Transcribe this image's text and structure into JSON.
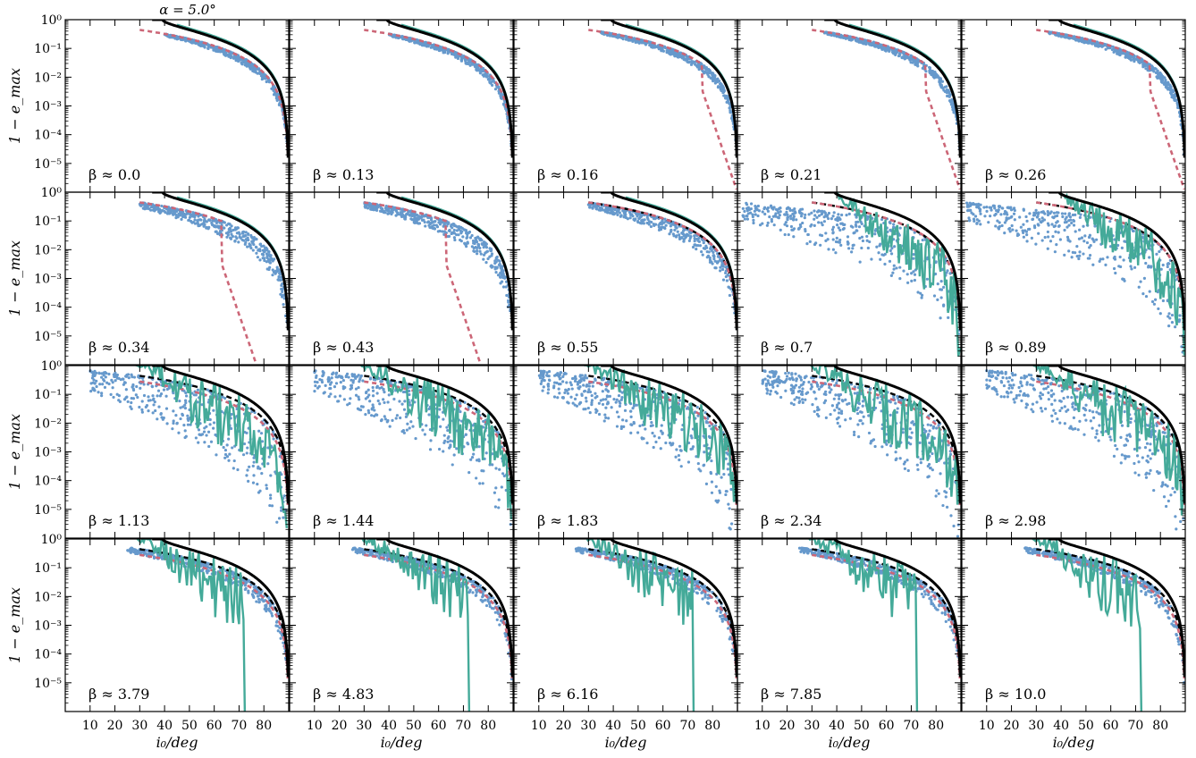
{
  "figure": {
    "title": "α = 5.0°",
    "xlabel": "i₀/deg",
    "ylabel": "1 − e_max"
  },
  "chart_data": {
    "type": "line",
    "grid": false,
    "layout": {
      "rows": 4,
      "cols": 5
    },
    "xlim": [
      0,
      90
    ],
    "ylim": [
      1e-06,
      1
    ],
    "yscale": "log",
    "xticks": [
      10,
      20,
      30,
      40,
      50,
      60,
      70,
      80
    ],
    "yticks": [
      1,
      0.1,
      0.01,
      0.001,
      0.0001,
      1e-05
    ],
    "yticklabels": [
      "10⁰",
      "10⁻¹",
      "10⁻²",
      "10⁻³",
      "10⁻⁴",
      "10⁻⁵"
    ],
    "colors": {
      "scatter": "#6699cc",
      "teal": "#44aa99",
      "red_dashed": "#cc6677",
      "black": "#000000"
    },
    "panels": [
      {
        "beta_label": "β ≈ 0.0",
        "beta": 0.0
      },
      {
        "beta_label": "β ≈ 0.13",
        "beta": 0.13
      },
      {
        "beta_label": "β ≈ 0.16",
        "beta": 0.16
      },
      {
        "beta_label": "β ≈ 0.21",
        "beta": 0.21
      },
      {
        "beta_label": "β ≈ 0.26",
        "beta": 0.26
      },
      {
        "beta_label": "β ≈ 0.34",
        "beta": 0.34
      },
      {
        "beta_label": "β ≈ 0.43",
        "beta": 0.43
      },
      {
        "beta_label": "β ≈ 0.55",
        "beta": 0.55
      },
      {
        "beta_label": "β ≈ 0.7",
        "beta": 0.7
      },
      {
        "beta_label": "β ≈ 0.89",
        "beta": 0.89
      },
      {
        "beta_label": "β ≈ 1.13",
        "beta": 1.13
      },
      {
        "beta_label": "β ≈ 1.44",
        "beta": 1.44
      },
      {
        "beta_label": "β ≈ 1.83",
        "beta": 1.83
      },
      {
        "beta_label": "β ≈ 2.34",
        "beta": 2.34
      },
      {
        "beta_label": "β ≈ 2.98",
        "beta": 2.98
      },
      {
        "beta_label": "β ≈ 3.79",
        "beta": 3.79
      },
      {
        "beta_label": "β ≈ 4.83",
        "beta": 4.83
      },
      {
        "beta_label": "β ≈ 6.16",
        "beta": 6.16
      },
      {
        "beta_label": "β ≈ 7.85",
        "beta": 7.85
      },
      {
        "beta_label": "β ≈ 10.0",
        "beta": 10.0
      }
    ]
  }
}
